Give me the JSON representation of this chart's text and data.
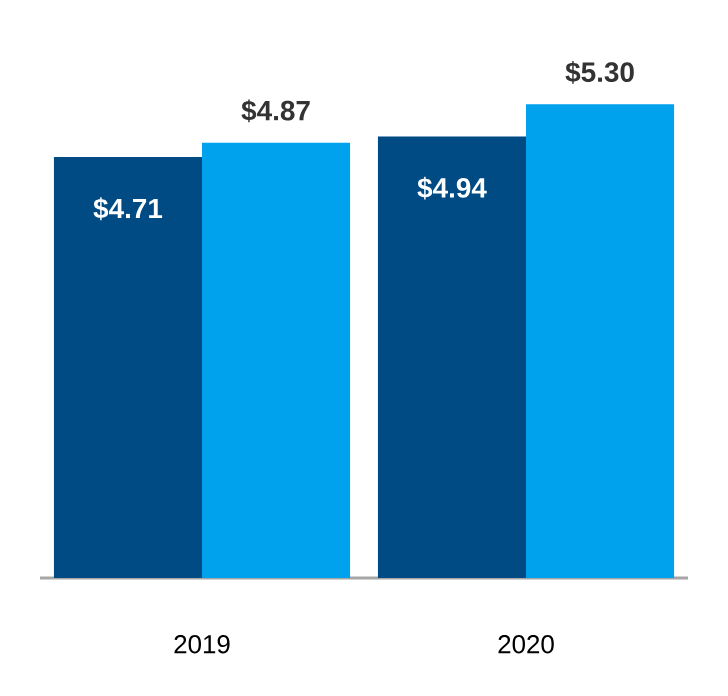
{
  "chart_data": {
    "type": "bar",
    "categories": [
      "2019",
      "2020"
    ],
    "series": [
      {
        "color": "#004b84",
        "values": [
          4.71,
          4.94
        ],
        "value_labels": [
          "$4.71",
          "$4.94"
        ]
      },
      {
        "color": "#00a2ee",
        "values": [
          4.87,
          5.3
        ],
        "value_labels": [
          "$4.87",
          "$5.30"
        ]
      }
    ]
  }
}
